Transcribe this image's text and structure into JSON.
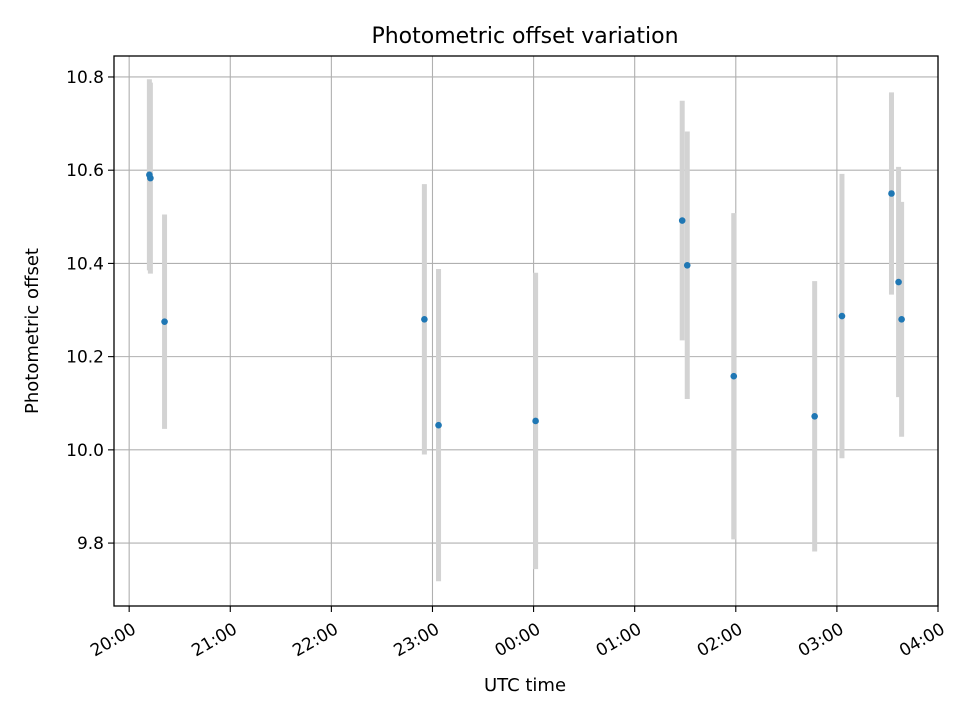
{
  "chart_data": {
    "type": "scatter",
    "title": "Photometric offset variation",
    "xlabel": "UTC time",
    "ylabel": "Photometric offset",
    "x_unit": "hours since 20:00 UTC",
    "xlim": [
      -0.15,
      8.0
    ],
    "ylim": [
      9.665,
      10.845
    ],
    "grid": true,
    "x_ticks": [
      {
        "value": 0,
        "label": "20:00"
      },
      {
        "value": 1,
        "label": "21:00"
      },
      {
        "value": 2,
        "label": "22:00"
      },
      {
        "value": 3,
        "label": "23:00"
      },
      {
        "value": 4,
        "label": "00:00"
      },
      {
        "value": 5,
        "label": "01:00"
      },
      {
        "value": 6,
        "label": "02:00"
      },
      {
        "value": 7,
        "label": "03:00"
      },
      {
        "value": 8,
        "label": "04:00"
      }
    ],
    "y_ticks": [
      {
        "value": 9.8,
        "label": "9.8"
      },
      {
        "value": 10.0,
        "label": "10.0"
      },
      {
        "value": 10.2,
        "label": "10.2"
      },
      {
        "value": 10.4,
        "label": "10.4"
      },
      {
        "value": 10.6,
        "label": "10.6"
      },
      {
        "value": 10.8,
        "label": "10.8"
      }
    ],
    "series": [
      {
        "name": "offset",
        "color": "#1f77b4",
        "error_color": "#d3d3d3",
        "points": [
          {
            "x": 0.2,
            "y": 10.59,
            "err": 0.205
          },
          {
            "x": 0.21,
            "y": 10.583,
            "err": 0.205
          },
          {
            "x": 0.35,
            "y": 10.275,
            "err": 0.23
          },
          {
            "x": 2.92,
            "y": 10.28,
            "err": 0.29
          },
          {
            "x": 3.06,
            "y": 10.053,
            "err": 0.335
          },
          {
            "x": 4.02,
            "y": 10.062,
            "err": 0.318
          },
          {
            "x": 5.47,
            "y": 10.492,
            "err": 0.257
          },
          {
            "x": 5.52,
            "y": 10.396,
            "err": 0.287
          },
          {
            "x": 5.98,
            "y": 10.158,
            "err": 0.35
          },
          {
            "x": 6.78,
            "y": 10.072,
            "err": 0.29
          },
          {
            "x": 7.05,
            "y": 10.287,
            "err": 0.305
          },
          {
            "x": 7.54,
            "y": 10.55,
            "err": 0.217
          },
          {
            "x": 7.61,
            "y": 10.36,
            "err": 0.247
          },
          {
            "x": 7.64,
            "y": 10.28,
            "err": 0.252
          }
        ]
      }
    ]
  }
}
